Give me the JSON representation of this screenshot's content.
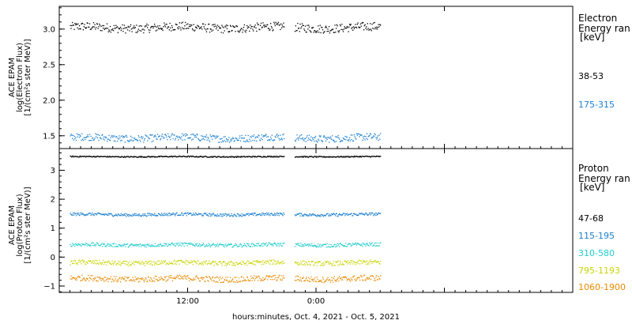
{
  "chart_data": [
    {
      "type": "scatter",
      "ylabel_lines": [
        "ACE EPAM",
        "log(Electron Flux)",
        "[1/(cm²s ster MeV)]"
      ],
      "ylim": [
        1.32,
        3.32
      ],
      "yticks": [
        1.5,
        2.0,
        2.5,
        3.0
      ],
      "ytick_labels": [
        "1.5",
        "2.0",
        "2.5",
        "3.0"
      ],
      "legend": {
        "title": "Electron",
        "subtitle": "Energy ran",
        "unit": "[keV]",
        "placement": "right"
      },
      "series": [
        {
          "name": "38-53",
          "color": "#000000",
          "mean": 3.02,
          "noise": 0.06
        },
        {
          "name": "175-315",
          "color": "#1a7fd0",
          "mean": 1.47,
          "noise": 0.05
        }
      ]
    },
    {
      "type": "scatter",
      "ylabel_lines": [
        "ACE EPAM",
        "log(Proton Flux)",
        "[1/(cm²s ster MeV)]"
      ],
      "ylim": [
        -1.22,
        3.75
      ],
      "yticks": [
        -1,
        0,
        1,
        2,
        3
      ],
      "ytick_labels": [
        "−1",
        "0",
        "1",
        "2",
        "3"
      ],
      "legend": {
        "title": "Proton",
        "subtitle": "Energy ran",
        "unit": "[keV]",
        "placement": "right"
      },
      "series": [
        {
          "name": "47-68",
          "color": "#000000",
          "mean": 3.47,
          "noise": 0.02
        },
        {
          "name": "115-195",
          "color": "#1a7fd0",
          "mean": 1.47,
          "noise": 0.05
        },
        {
          "name": "310-580",
          "color": "#22cccc",
          "mean": 0.42,
          "noise": 0.06
        },
        {
          "name": "795-1193",
          "color": "#c8d400",
          "mean": -0.2,
          "noise": 0.08
        },
        {
          "name": "1060-1900",
          "color": "#e88a00",
          "mean": -0.75,
          "noise": 0.1
        }
      ]
    }
  ],
  "x_axis": {
    "range_hours": [
      0,
      48
    ],
    "ticks": [
      {
        "hour": 12,
        "label": "12:00"
      },
      {
        "hour": 24,
        "label": "0:00"
      },
      {
        "hour": 36,
        "label": ""
      }
    ],
    "data_segments_hours": [
      [
        1.0,
        21.0
      ],
      [
        22.0,
        30.0
      ]
    ],
    "label": "hours:minutes, Oct.  4, 2021 - Oct.  5, 2021"
  }
}
